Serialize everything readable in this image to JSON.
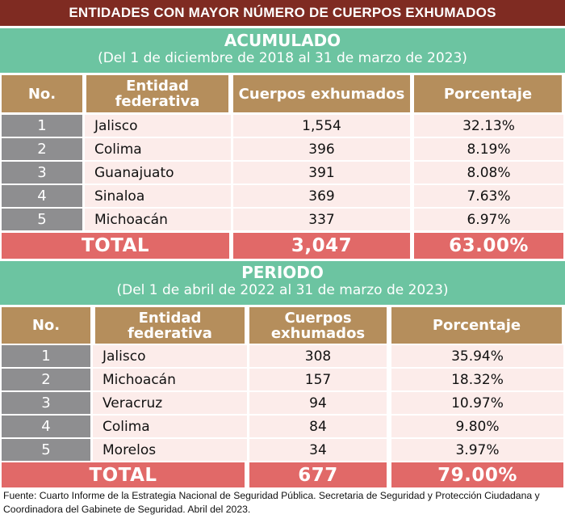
{
  "title": "ENTIDADES CON MAYOR NÚMERO DE CUERPOS EXHUMADOS",
  "acumulado": {
    "heading": "ACUMULADO",
    "subheading": "(Del 1 de diciembre de 2018 al 31 de marzo de 2023)",
    "columns": [
      "No.",
      "Entidad federativa",
      "Cuerpos exhumados",
      "Porcentaje"
    ],
    "rows": [
      {
        "no": "1",
        "entidad": "Jalisco",
        "cuerpos": "1,554",
        "porcentaje": "32.13%"
      },
      {
        "no": "2",
        "entidad": "Colima",
        "cuerpos": "396",
        "porcentaje": "8.19%"
      },
      {
        "no": "3",
        "entidad": "Guanajuato",
        "cuerpos": "391",
        "porcentaje": "8.08%"
      },
      {
        "no": "4",
        "entidad": "Sinaloa",
        "cuerpos": "369",
        "porcentaje": "7.63%"
      },
      {
        "no": "5",
        "entidad": "Michoacán",
        "cuerpos": "337",
        "porcentaje": "6.97%"
      }
    ],
    "total": {
      "label": "TOTAL",
      "cuerpos": "3,047",
      "porcentaje": "63.00%"
    }
  },
  "periodo": {
    "heading": "PERIODO",
    "subheading": "(Del 1 de abril de 2022 al 31 de marzo de 2023)",
    "columns": [
      "No.",
      "Entidad federativa",
      "Cuerpos exhumados",
      "Porcentaje"
    ],
    "rows": [
      {
        "no": "1",
        "entidad": "Jalisco",
        "cuerpos": "308",
        "porcentaje": "35.94%"
      },
      {
        "no": "2",
        "entidad": "Michoacán",
        "cuerpos": "157",
        "porcentaje": "18.32%"
      },
      {
        "no": "3",
        "entidad": "Veracruz",
        "cuerpos": "94",
        "porcentaje": "10.97%"
      },
      {
        "no": "4",
        "entidad": "Colima",
        "cuerpos": "84",
        "porcentaje": "9.80%"
      },
      {
        "no": "5",
        "entidad": "Morelos",
        "cuerpos": "34",
        "porcentaje": "3.97%"
      }
    ],
    "total": {
      "label": "TOTAL",
      "cuerpos": "677",
      "porcentaje": "79.00%"
    }
  },
  "source": "Fuente: Cuarto Informe de la Estrategia Nacional de Seguridad Pública. Secretaria de Seguridad y Protección Ciudadana y Coordinadora del Gabinete de Seguridad. Abril del 2023."
}
